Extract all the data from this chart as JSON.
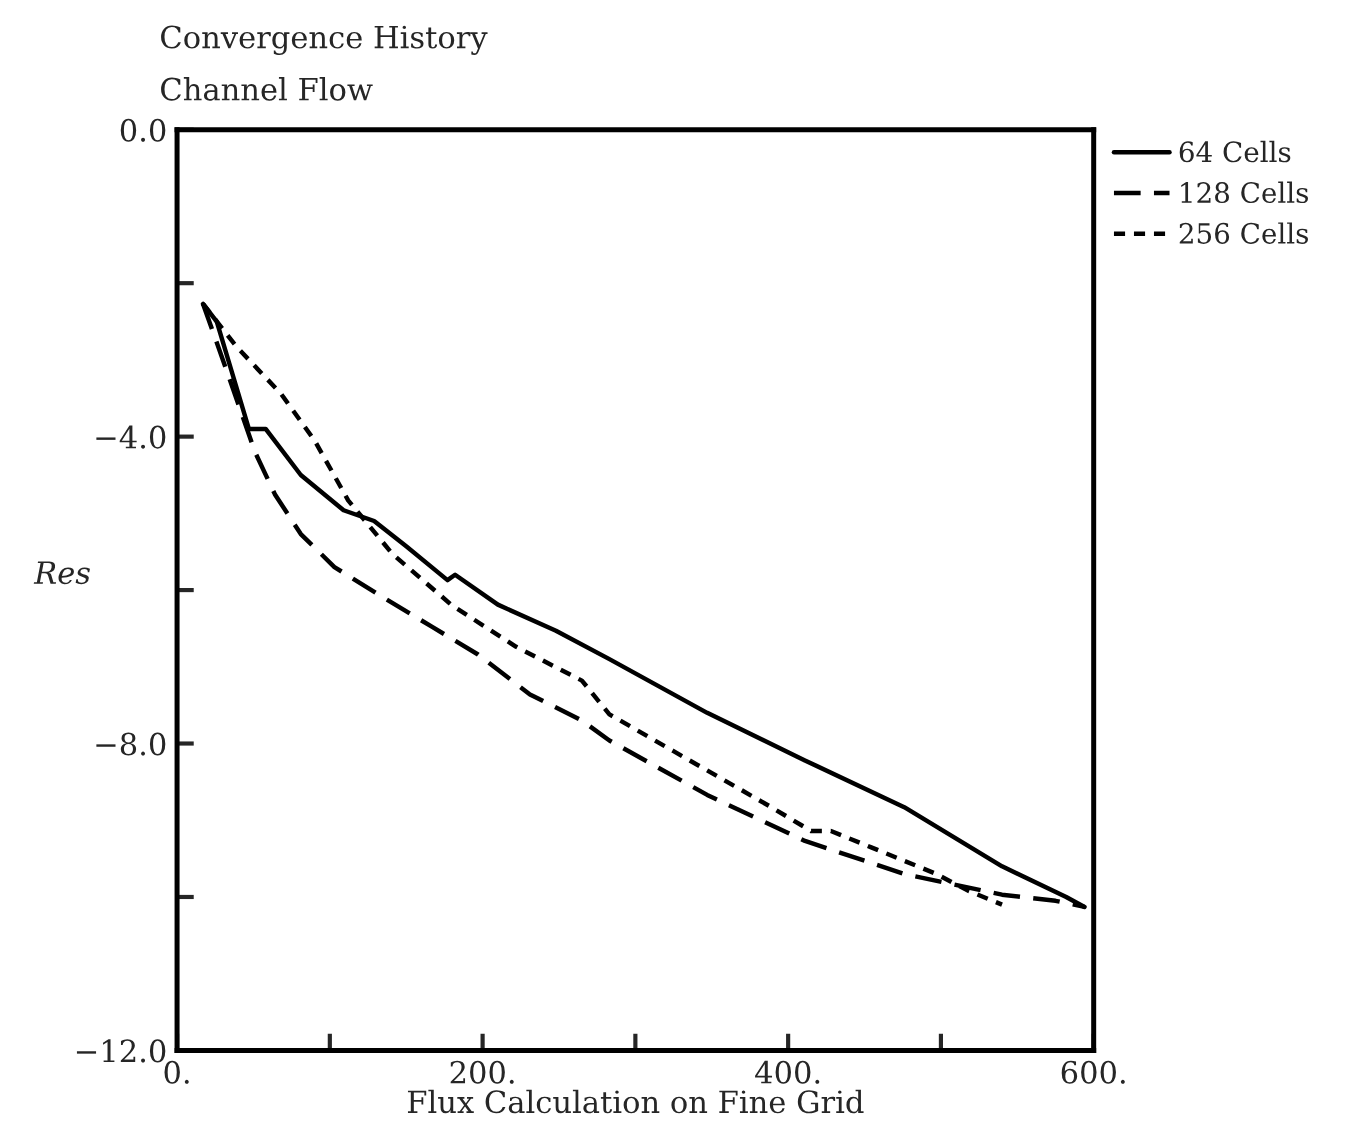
{
  "chart_data": {
    "type": "line",
    "title": "Convergence History",
    "subtitle": "Channel Flow",
    "xlabel": "Flux Calculation on Fine Grid",
    "ylabel": "Res",
    "xlim": [
      0,
      600
    ],
    "ylim": [
      -12,
      0
    ],
    "xticks": [
      {
        "value": 0,
        "label": "0."
      },
      {
        "value": 100,
        "label": null
      },
      {
        "value": 200,
        "label": "200."
      },
      {
        "value": 300,
        "label": null
      },
      {
        "value": 400,
        "label": "400."
      },
      {
        "value": 500,
        "label": null
      },
      {
        "value": 600,
        "label": "600."
      }
    ],
    "yticks": [
      {
        "value": -12,
        "label": "−12.0"
      },
      {
        "value": -10,
        "label": null
      },
      {
        "value": -8,
        "label": "−8.0"
      },
      {
        "value": -6,
        "label": null
      },
      {
        "value": -4,
        "label": "−4.0"
      },
      {
        "value": -2,
        "label": null
      },
      {
        "value": 0,
        "label": "0.0"
      }
    ],
    "grid": false,
    "legend": "top right",
    "series": [
      {
        "name": "64 Cells",
        "color": "#000000",
        "line_style": "solid",
        "x": [
          17,
          26,
          47,
          58,
          81,
          109,
          129,
          150,
          177,
          182,
          210,
          248,
          283,
          347,
          411,
          476,
          540,
          582,
          594
        ],
        "values": [
          -2.27,
          -2.5,
          -3.9,
          -3.9,
          -4.5,
          -4.96,
          -5.1,
          -5.43,
          -5.87,
          -5.8,
          -6.19,
          -6.53,
          -6.9,
          -7.6,
          -8.22,
          -8.83,
          -9.6,
          -10.0,
          -10.13
        ]
      },
      {
        "name": "128 Cells",
        "color": "#000000",
        "line_style": "dashed",
        "x": [
          17,
          30,
          51,
          64,
          81,
          103,
          132,
          167,
          197,
          231,
          265,
          283,
          347,
          411,
          476,
          540,
          575,
          594
        ],
        "values": [
          -2.27,
          -3.0,
          -4.2,
          -4.75,
          -5.27,
          -5.7,
          -6.06,
          -6.48,
          -6.84,
          -7.36,
          -7.7,
          -7.96,
          -8.67,
          -9.27,
          -9.7,
          -9.97,
          -10.05,
          -10.13
        ]
      },
      {
        "name": "256 Cells",
        "color": "#000000",
        "line_style": "dotted",
        "x": [
          17,
          39,
          68,
          90,
          112,
          141,
          180,
          222,
          265,
          283,
          325,
          389,
          415,
          428,
          454,
          497,
          518,
          540
        ],
        "values": [
          -2.27,
          -2.83,
          -3.44,
          -4.05,
          -4.83,
          -5.53,
          -6.2,
          -6.74,
          -7.18,
          -7.62,
          -8.1,
          -8.83,
          -9.14,
          -9.14,
          -9.35,
          -9.7,
          -9.92,
          -10.1
        ]
      }
    ]
  }
}
